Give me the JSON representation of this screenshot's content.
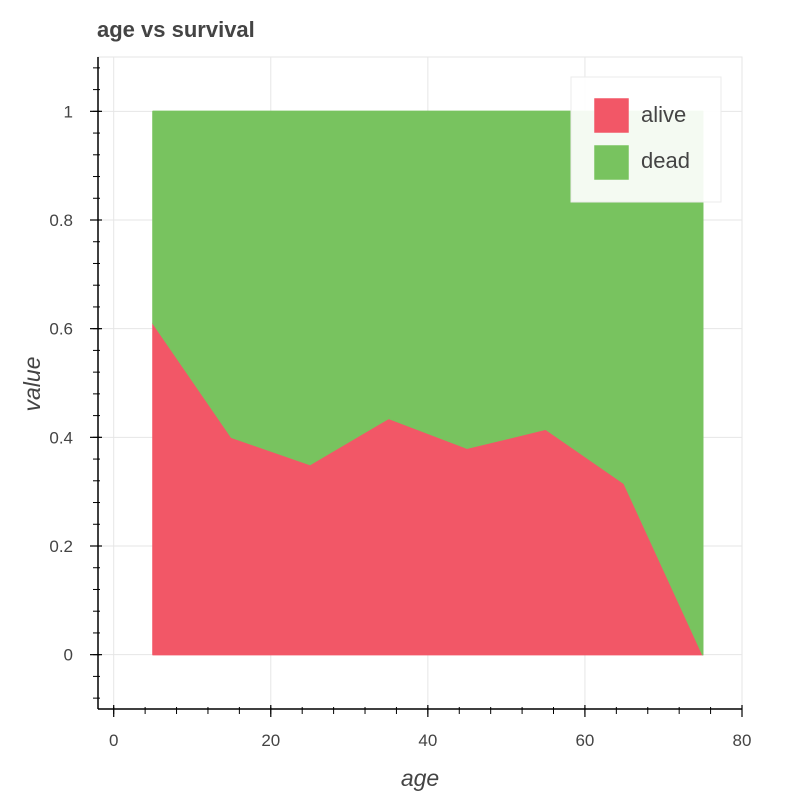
{
  "chart_data": {
    "type": "area",
    "stacked": true,
    "title": "age vs survival",
    "xlabel": "age",
    "ylabel": "value",
    "xlim": [
      -2,
      80
    ],
    "ylim": [
      -0.1,
      1.1
    ],
    "x_ticks": [
      0,
      20,
      40,
      60,
      80
    ],
    "y_ticks": [
      0,
      0.2,
      0.4,
      0.6,
      0.8,
      1
    ],
    "y_tick_labels": [
      "0",
      "0.2",
      "0.4",
      "0.6",
      "0.8",
      "1"
    ],
    "grid": true,
    "legend_position": "top-right",
    "x": [
      5,
      15,
      25,
      35,
      45,
      55,
      65,
      75
    ],
    "series": [
      {
        "name": "alive",
        "color": "#f25767",
        "values": [
          0.61,
          0.4,
          0.35,
          0.435,
          0.38,
          0.415,
          0.315,
          0.0
        ]
      },
      {
        "name": "dead",
        "color": "#78c35f",
        "values": [
          0.39,
          0.6,
          0.65,
          0.565,
          0.62,
          0.585,
          0.685,
          1.0
        ]
      }
    ]
  }
}
